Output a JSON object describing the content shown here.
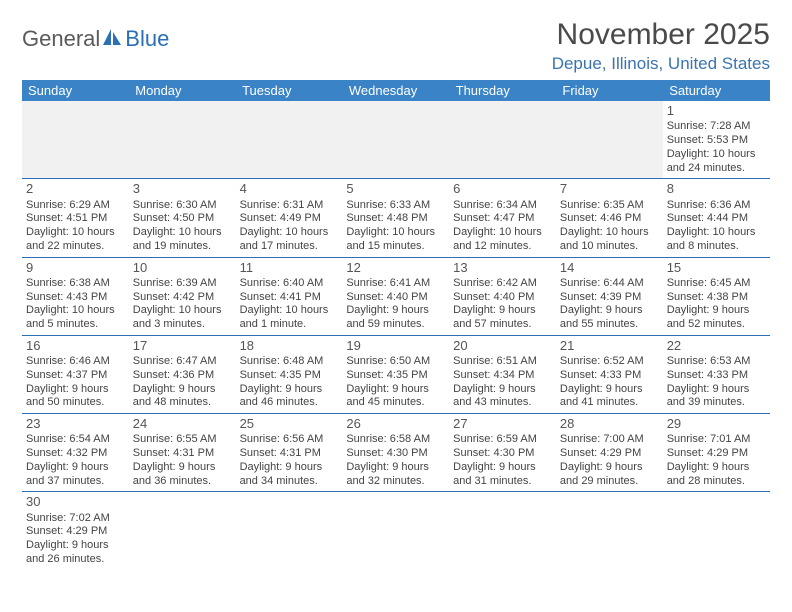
{
  "logo": {
    "word1": "General",
    "word2": "Blue"
  },
  "title": "November 2025",
  "location": "Depue, Illinois, United States",
  "colors": {
    "header_bg": "#3a83c6",
    "header_fg": "#ffffff",
    "rule": "#2d6fb5",
    "location_color": "#3a73b0",
    "title_color": "#4a4a4a",
    "body_text": "#444444",
    "empty_bg": "#f1f1f1",
    "logo_gray": "#5a5a5a",
    "logo_blue": "#2d6fb5"
  },
  "dayNames": [
    "Sunday",
    "Monday",
    "Tuesday",
    "Wednesday",
    "Thursday",
    "Friday",
    "Saturday"
  ],
  "leadingBlanks": 6,
  "trailingBlanks": 6,
  "days": [
    {
      "n": 1,
      "sr": "7:28 AM",
      "ss": "5:53 PM",
      "dl": "10 hours and 24 minutes."
    },
    {
      "n": 2,
      "sr": "6:29 AM",
      "ss": "4:51 PM",
      "dl": "10 hours and 22 minutes."
    },
    {
      "n": 3,
      "sr": "6:30 AM",
      "ss": "4:50 PM",
      "dl": "10 hours and 19 minutes."
    },
    {
      "n": 4,
      "sr": "6:31 AM",
      "ss": "4:49 PM",
      "dl": "10 hours and 17 minutes."
    },
    {
      "n": 5,
      "sr": "6:33 AM",
      "ss": "4:48 PM",
      "dl": "10 hours and 15 minutes."
    },
    {
      "n": 6,
      "sr": "6:34 AM",
      "ss": "4:47 PM",
      "dl": "10 hours and 12 minutes."
    },
    {
      "n": 7,
      "sr": "6:35 AM",
      "ss": "4:46 PM",
      "dl": "10 hours and 10 minutes."
    },
    {
      "n": 8,
      "sr": "6:36 AM",
      "ss": "4:44 PM",
      "dl": "10 hours and 8 minutes."
    },
    {
      "n": 9,
      "sr": "6:38 AM",
      "ss": "4:43 PM",
      "dl": "10 hours and 5 minutes."
    },
    {
      "n": 10,
      "sr": "6:39 AM",
      "ss": "4:42 PM",
      "dl": "10 hours and 3 minutes."
    },
    {
      "n": 11,
      "sr": "6:40 AM",
      "ss": "4:41 PM",
      "dl": "10 hours and 1 minute."
    },
    {
      "n": 12,
      "sr": "6:41 AM",
      "ss": "4:40 PM",
      "dl": "9 hours and 59 minutes."
    },
    {
      "n": 13,
      "sr": "6:42 AM",
      "ss": "4:40 PM",
      "dl": "9 hours and 57 minutes."
    },
    {
      "n": 14,
      "sr": "6:44 AM",
      "ss": "4:39 PM",
      "dl": "9 hours and 55 minutes."
    },
    {
      "n": 15,
      "sr": "6:45 AM",
      "ss": "4:38 PM",
      "dl": "9 hours and 52 minutes."
    },
    {
      "n": 16,
      "sr": "6:46 AM",
      "ss": "4:37 PM",
      "dl": "9 hours and 50 minutes."
    },
    {
      "n": 17,
      "sr": "6:47 AM",
      "ss": "4:36 PM",
      "dl": "9 hours and 48 minutes."
    },
    {
      "n": 18,
      "sr": "6:48 AM",
      "ss": "4:35 PM",
      "dl": "9 hours and 46 minutes."
    },
    {
      "n": 19,
      "sr": "6:50 AM",
      "ss": "4:35 PM",
      "dl": "9 hours and 45 minutes."
    },
    {
      "n": 20,
      "sr": "6:51 AM",
      "ss": "4:34 PM",
      "dl": "9 hours and 43 minutes."
    },
    {
      "n": 21,
      "sr": "6:52 AM",
      "ss": "4:33 PM",
      "dl": "9 hours and 41 minutes."
    },
    {
      "n": 22,
      "sr": "6:53 AM",
      "ss": "4:33 PM",
      "dl": "9 hours and 39 minutes."
    },
    {
      "n": 23,
      "sr": "6:54 AM",
      "ss": "4:32 PM",
      "dl": "9 hours and 37 minutes."
    },
    {
      "n": 24,
      "sr": "6:55 AM",
      "ss": "4:31 PM",
      "dl": "9 hours and 36 minutes."
    },
    {
      "n": 25,
      "sr": "6:56 AM",
      "ss": "4:31 PM",
      "dl": "9 hours and 34 minutes."
    },
    {
      "n": 26,
      "sr": "6:58 AM",
      "ss": "4:30 PM",
      "dl": "9 hours and 32 minutes."
    },
    {
      "n": 27,
      "sr": "6:59 AM",
      "ss": "4:30 PM",
      "dl": "9 hours and 31 minutes."
    },
    {
      "n": 28,
      "sr": "7:00 AM",
      "ss": "4:29 PM",
      "dl": "9 hours and 29 minutes."
    },
    {
      "n": 29,
      "sr": "7:01 AM",
      "ss": "4:29 PM",
      "dl": "9 hours and 28 minutes."
    },
    {
      "n": 30,
      "sr": "7:02 AM",
      "ss": "4:29 PM",
      "dl": "9 hours and 26 minutes."
    }
  ],
  "labels": {
    "sunrise": "Sunrise:",
    "sunset": "Sunset:",
    "daylight": "Daylight:"
  }
}
